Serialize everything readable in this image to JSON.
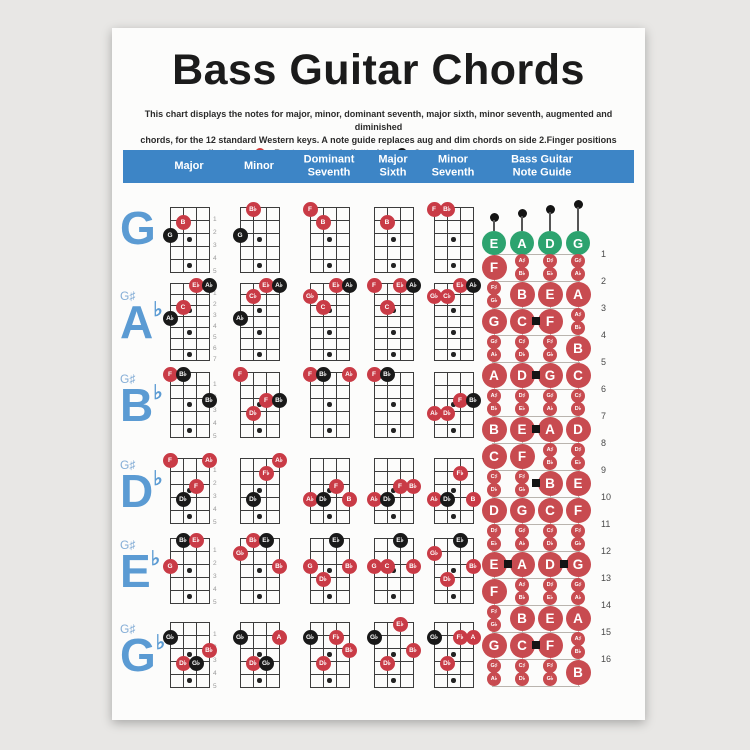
{
  "page": {
    "title": "Bass Guitar Chords",
    "description_line1": "This chart displays the notes for major, minor, dominant seventh, major sixth, minor seventh, augmented and diminished",
    "description_line2": "chords, for the 12 standard Western keys. A note guide replaces aug and dim chords on side 2.Finger positions",
    "legend": {
      "before_red_dot": "are indicated by",
      "between_dots": ". Root notes are indicated by",
      "after_black_dot": ".Open strings do not contain symbols."
    }
  },
  "header": {
    "columns": [
      "Major",
      "Minor",
      "Dominant\nSeventh",
      "Major\nSixth",
      "Minor\nSeventh",
      "Bass Guitar\nNote Guide"
    ]
  },
  "colors": {
    "bar_blue": "#3d85c6",
    "key_blue": "#5b9bd3",
    "key_sub_blue": "#84add6",
    "finger_red": "#c93b46",
    "root_black": "#191919",
    "guide_red": "#c84b50",
    "open_green": "#2da36f",
    "legend_red": "#d23b3b",
    "legend_black": "#111111"
  },
  "chord_table": {
    "rows": [
      {
        "key_letter": "G",
        "key_accidental": "",
        "key_sub": "",
        "fret_count": 5,
        "markers": [
          3,
          5
        ],
        "chords": [
          [
            [
              2,
              2,
              "B",
              "r"
            ],
            [
              1,
              3,
              "G",
              "b"
            ]
          ],
          [
            [
              2,
              1,
              "B♭",
              "r"
            ],
            [
              1,
              3,
              "G",
              "b"
            ]
          ],
          [
            [
              1,
              1,
              "F",
              "r"
            ],
            [
              2,
              2,
              "B",
              "r"
            ]
          ],
          [
            [
              2,
              2,
              "B",
              "r"
            ]
          ],
          [
            [
              1,
              1,
              "F",
              "r"
            ],
            [
              2,
              1,
              "B♭",
              "r"
            ]
          ]
        ]
      },
      {
        "key_letter": "A",
        "key_accidental": "♭",
        "key_sub": "G♯",
        "fret_count": 7,
        "markers": [
          3,
          5,
          7
        ],
        "chords": [
          [
            [
              3,
              1,
              "E♭",
              "r"
            ],
            [
              4,
              1,
              "A♭",
              "b"
            ],
            [
              2,
              3,
              "C",
              "r"
            ],
            [
              1,
              4,
              "A♭",
              "b"
            ]
          ],
          [
            [
              3,
              1,
              "E♭",
              "r"
            ],
            [
              4,
              1,
              "A♭",
              "b"
            ],
            [
              2,
              2,
              "C♭",
              "r"
            ],
            [
              1,
              4,
              "A♭",
              "b"
            ]
          ],
          [
            [
              3,
              1,
              "E♭",
              "r"
            ],
            [
              4,
              1,
              "A♭",
              "b"
            ],
            [
              1,
              2,
              "G♭",
              "r"
            ],
            [
              2,
              3,
              "C",
              "r"
            ]
          ],
          [
            [
              3,
              1,
              "E♭",
              "r"
            ],
            [
              4,
              1,
              "A♭",
              "b"
            ],
            [
              1,
              1,
              "F",
              "r"
            ],
            [
              2,
              3,
              "C",
              "r"
            ]
          ],
          [
            [
              3,
              1,
              "E♭",
              "r"
            ],
            [
              4,
              1,
              "A♭",
              "b"
            ],
            [
              1,
              2,
              "G♭",
              "r"
            ],
            [
              2,
              2,
              "C♭",
              "r"
            ]
          ]
        ]
      },
      {
        "key_letter": "B",
        "key_accidental": "♭",
        "key_sub": "G♯",
        "fret_count": 5,
        "markers": [
          3,
          5
        ],
        "chords": [
          [
            [
              1,
              1,
              "F",
              "r"
            ],
            [
              2,
              1,
              "B♭",
              "b"
            ],
            [
              4,
              3,
              "B♭",
              "b"
            ]
          ],
          [
            [
              1,
              1,
              "F",
              "r"
            ],
            [
              3,
              3,
              "F",
              "r"
            ],
            [
              4,
              3,
              "B♭",
              "b"
            ],
            [
              2,
              4,
              "D♭",
              "r"
            ]
          ],
          [
            [
              1,
              1,
              "F",
              "r"
            ],
            [
              2,
              1,
              "B♭",
              "b"
            ],
            [
              4,
              1,
              "A♭",
              "r"
            ]
          ],
          [
            [
              1,
              1,
              "F",
              "r"
            ],
            [
              2,
              1,
              "B♭",
              "b"
            ]
          ],
          [
            [
              3,
              3,
              "F",
              "r"
            ],
            [
              4,
              3,
              "B♭",
              "b"
            ],
            [
              1,
              4,
              "A♭",
              "r"
            ],
            [
              2,
              4,
              "D♭",
              "r"
            ]
          ]
        ]
      },
      {
        "key_letter": "D",
        "key_accidental": "♭",
        "key_sub": "G♯",
        "fret_count": 5,
        "markers": [
          3,
          5
        ],
        "chords": [
          [
            [
              1,
              1,
              "F",
              "r"
            ],
            [
              4,
              1,
              "A♭",
              "r"
            ],
            [
              3,
              3,
              "F",
              "r"
            ],
            [
              2,
              4,
              "D♭",
              "b"
            ]
          ],
          [
            [
              4,
              1,
              "A♭",
              "r"
            ],
            [
              3,
              2,
              "F♭",
              "r"
            ],
            [
              2,
              4,
              "D♭",
              "b"
            ]
          ],
          [
            [
              3,
              3,
              "F",
              "r"
            ],
            [
              1,
              4,
              "A♭",
              "r"
            ],
            [
              2,
              4,
              "D♭",
              "b"
            ],
            [
              4,
              4,
              "B",
              "r"
            ]
          ],
          [
            [
              3,
              3,
              "F",
              "r"
            ],
            [
              4,
              3,
              "B♭",
              "r"
            ],
            [
              1,
              4,
              "A♭",
              "r"
            ],
            [
              2,
              4,
              "D♭",
              "b"
            ]
          ],
          [
            [
              3,
              2,
              "F♭",
              "r"
            ],
            [
              1,
              4,
              "A♭",
              "r"
            ],
            [
              2,
              4,
              "D♭",
              "b"
            ],
            [
              4,
              4,
              "B",
              "r"
            ]
          ]
        ]
      },
      {
        "key_letter": "E",
        "key_accidental": "♭",
        "key_sub": "G♯",
        "fret_count": 5,
        "markers": [
          3,
          5
        ],
        "chords": [
          [
            [
              2,
              1,
              "B♭",
              "b"
            ],
            [
              3,
              1,
              "E♭",
              "r"
            ],
            [
              1,
              3,
              "G",
              "r"
            ]
          ],
          [
            [
              2,
              1,
              "B♭",
              "r"
            ],
            [
              3,
              1,
              "E♭",
              "b"
            ],
            [
              1,
              2,
              "G♭",
              "r"
            ],
            [
              4,
              3,
              "B♭",
              "r"
            ]
          ],
          [
            [
              3,
              1,
              "E♭",
              "b"
            ],
            [
              1,
              3,
              "G",
              "r"
            ],
            [
              4,
              3,
              "B♭",
              "r"
            ],
            [
              2,
              4,
              "D♭",
              "r"
            ]
          ],
          [
            [
              3,
              1,
              "E♭",
              "b"
            ],
            [
              1,
              3,
              "G",
              "r"
            ],
            [
              2,
              3,
              "C",
              "r"
            ],
            [
              4,
              3,
              "B♭",
              "r"
            ]
          ],
          [
            [
              3,
              1,
              "E♭",
              "b"
            ],
            [
              1,
              2,
              "G♭",
              "r"
            ],
            [
              4,
              3,
              "B♭",
              "r"
            ],
            [
              2,
              4,
              "D♭",
              "r"
            ]
          ]
        ]
      },
      {
        "key_letter": "G",
        "key_accidental": "♭",
        "key_sub": "G♯",
        "fret_count": 5,
        "markers": [
          3,
          5
        ],
        "chords": [
          [
            [
              1,
              2,
              "G♭",
              "b"
            ],
            [
              4,
              3,
              "B♭",
              "r"
            ],
            [
              2,
              4,
              "D♭",
              "r"
            ],
            [
              3,
              4,
              "G♭",
              "b"
            ]
          ],
          [
            [
              1,
              2,
              "G♭",
              "b"
            ],
            [
              4,
              2,
              "A",
              "r"
            ],
            [
              2,
              4,
              "D♭",
              "r"
            ],
            [
              3,
              4,
              "G♭",
              "b"
            ]
          ],
          [
            [
              1,
              2,
              "G♭",
              "b"
            ],
            [
              3,
              2,
              "F♭",
              "r"
            ],
            [
              4,
              3,
              "B♭",
              "r"
            ],
            [
              2,
              4,
              "D♭",
              "r"
            ]
          ],
          [
            [
              3,
              1,
              "E♭",
              "r"
            ],
            [
              1,
              2,
              "G♭",
              "b"
            ],
            [
              4,
              3,
              "B♭",
              "r"
            ],
            [
              2,
              4,
              "D♭",
              "r"
            ]
          ],
          [
            [
              1,
              2,
              "G♭",
              "b"
            ],
            [
              3,
              2,
              "F♭",
              "r"
            ],
            [
              4,
              2,
              "A",
              "r"
            ],
            [
              2,
              4,
              "D♭",
              "r"
            ]
          ]
        ]
      }
    ]
  },
  "note_guide": {
    "open_strings": [
      "E",
      "A",
      "D",
      "G"
    ],
    "fret_numbers": [
      1,
      2,
      3,
      4,
      5,
      6,
      7,
      8,
      9,
      10,
      11,
      12,
      13,
      14,
      15,
      16
    ],
    "frets": [
      [
        "F",
        "A♯|B♭",
        "D♯|E♭",
        "G♯|A♭"
      ],
      [
        "F♯|G♭",
        "B",
        "E",
        "A"
      ],
      [
        "G",
        "C",
        "F",
        "A♯|B♭"
      ],
      [
        "G♯|A♭",
        "C♯|D♭",
        "F♯|G♭",
        "B"
      ],
      [
        "A",
        "D",
        "G",
        "C"
      ],
      [
        "A♯|B♭",
        "D♯|E♭",
        "G♯|A♭",
        "C♯|D♭"
      ],
      [
        "B",
        "E",
        "A",
        "D"
      ],
      [
        "C",
        "F",
        "A♯|B♭",
        "D♯|E♭"
      ],
      [
        "C♯|D♭",
        "F♯|G♭",
        "B",
        "E"
      ],
      [
        "D",
        "G",
        "C",
        "F"
      ],
      [
        "D♯|E♭",
        "G♯|A♭",
        "C♯|D♭",
        "F♯|G♭"
      ],
      [
        "E",
        "A",
        "D",
        "G"
      ],
      [
        "F",
        "A♯|B♭",
        "D♯|E♭",
        "G♯|A♭"
      ],
      [
        "F♯|G♭",
        "B",
        "E",
        "A"
      ],
      [
        "G",
        "C",
        "F",
        "A♯|B♭"
      ],
      [
        "G♯|A♭",
        "C♯|D♭",
        "F♯|G♭",
        "B"
      ]
    ],
    "inlay_markers": {
      "3": [
        1
      ],
      "5": [
        1
      ],
      "7": [
        1
      ],
      "9": [
        1
      ],
      "12": [
        0,
        2
      ],
      "15": [
        1
      ]
    }
  }
}
